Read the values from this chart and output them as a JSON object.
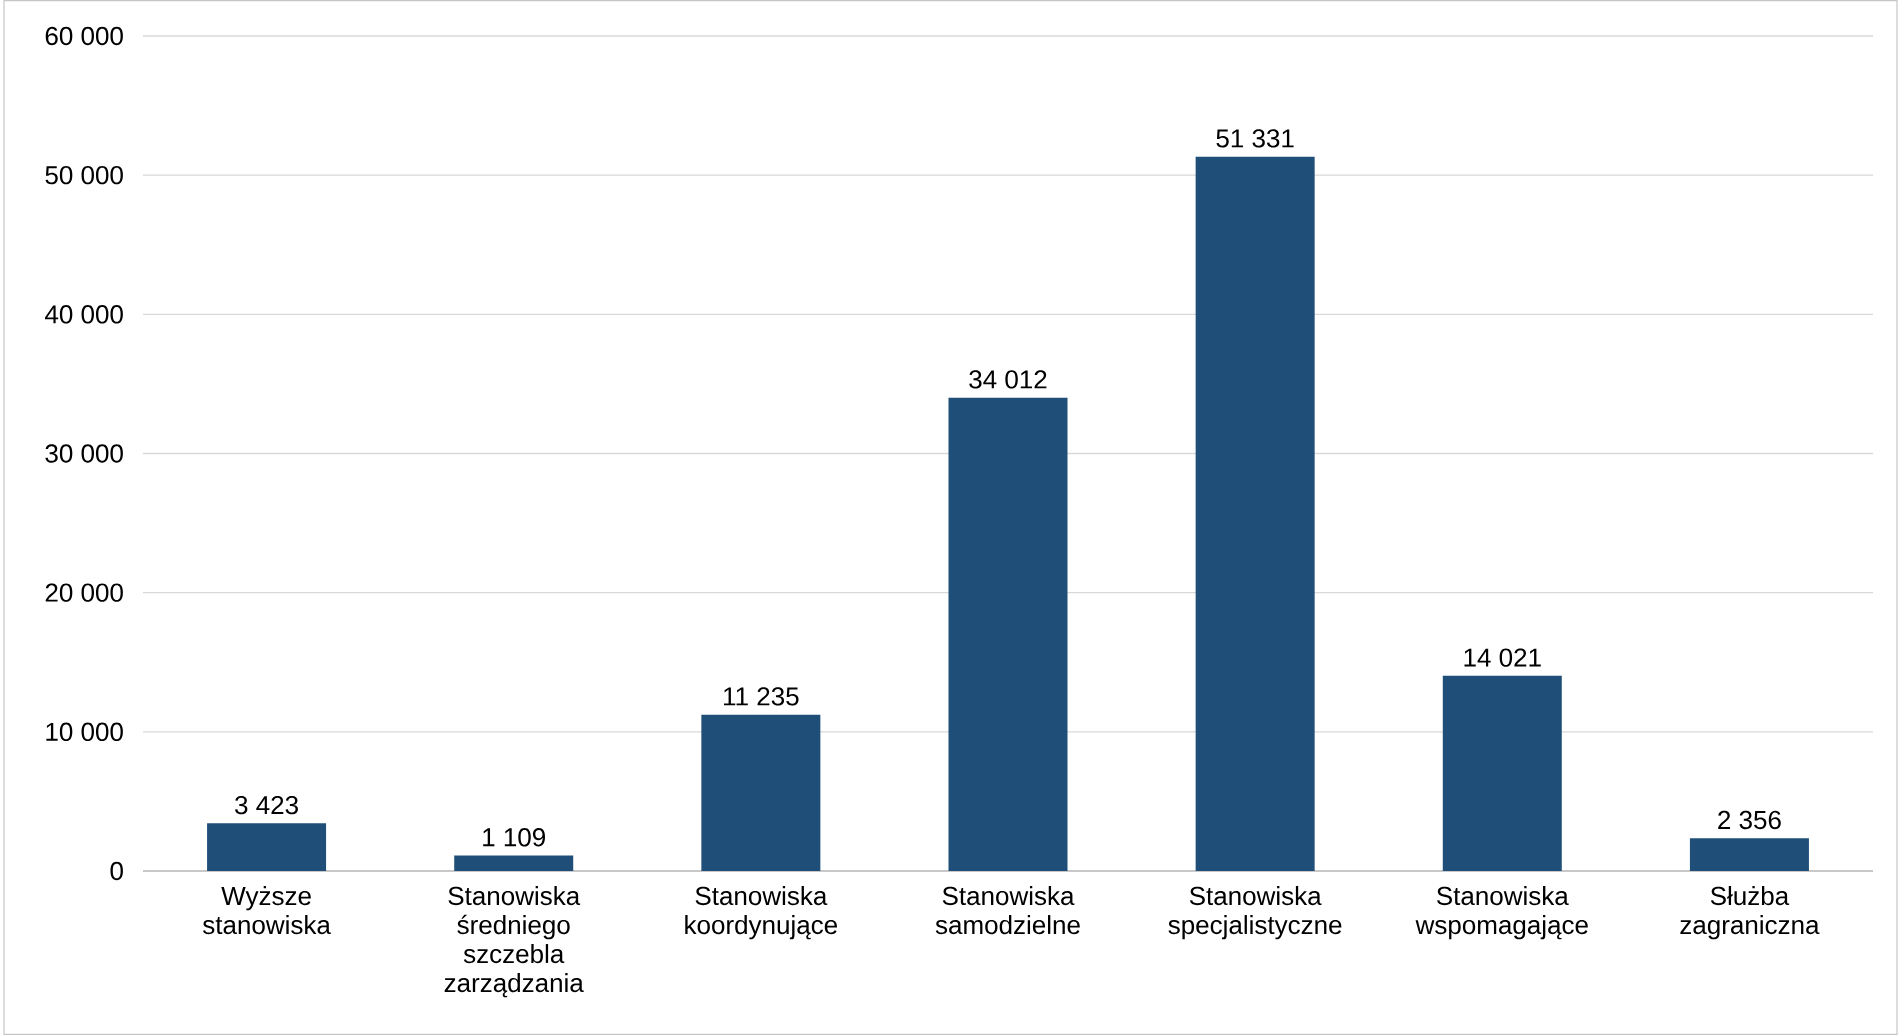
{
  "chart_data": {
    "type": "bar",
    "categories": [
      "Wyższe stanowiska",
      "Stanowiska średniego szczebla zarządzania",
      "Stanowiska koordynujące",
      "Stanowiska samodzielne",
      "Stanowiska specjalistyczne",
      "Stanowiska wspomagające",
      "Służba zagraniczna"
    ],
    "values": [
      3423,
      1109,
      11235,
      34012,
      51331,
      14021,
      2356
    ],
    "value_labels": [
      "3 423",
      "1 109",
      "11 235",
      "34 012",
      "51 331",
      "14 021",
      "2 356"
    ],
    "color": "#1f4e79",
    "ylim": [
      0,
      60000
    ],
    "yticks": [
      0,
      {
        "value": 10000,
        "label": "10 000"
      },
      {
        "value": 20000,
        "label": "20 000"
      },
      {
        "value": 30000,
        "label": "30 000"
      },
      {
        "value": 40000,
        "label": "40 000"
      },
      {
        "value": 50000,
        "label": "50 000"
      },
      {
        "value": 60000,
        "label": "60 000"
      }
    ],
    "grid": "y"
  }
}
